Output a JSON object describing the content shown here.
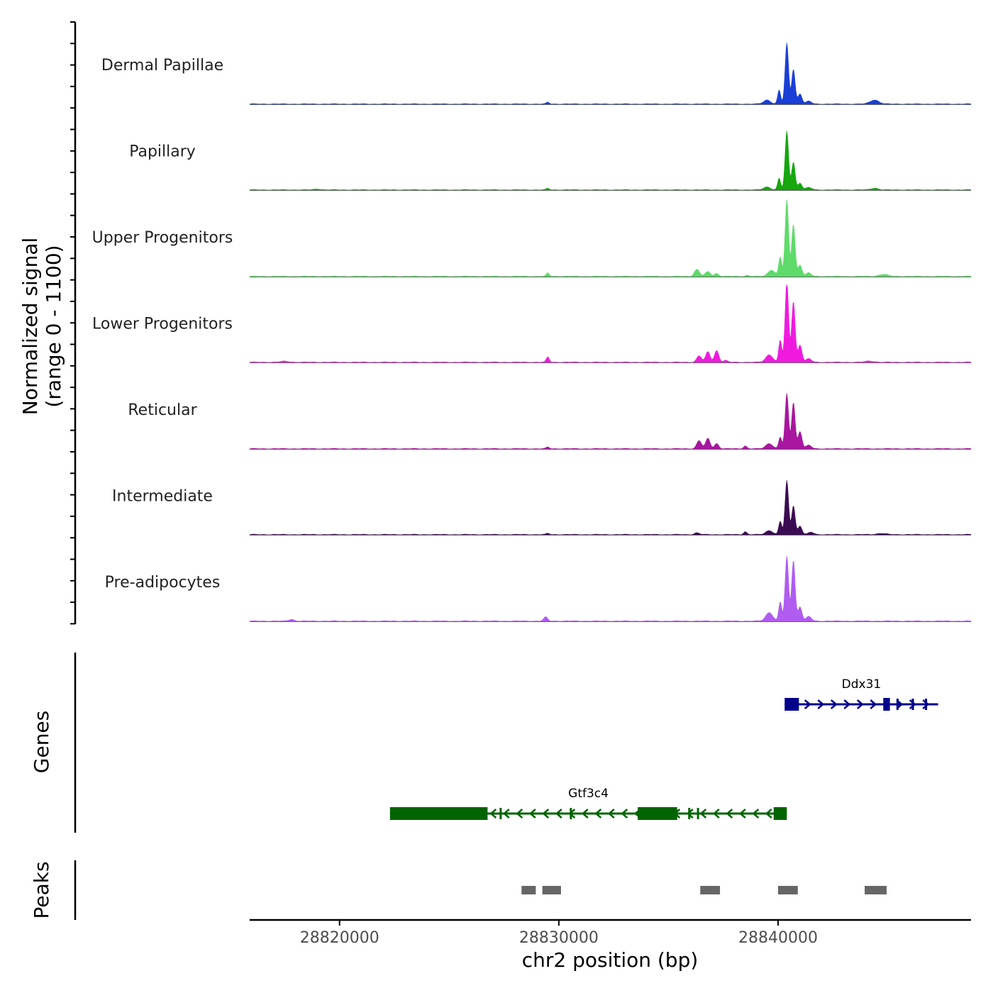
{
  "chart_data": {
    "type": "area",
    "title": "",
    "ylabel": "Normalized signal",
    "ylabel_range": "(range 0 - 1100)",
    "ylim": [
      0,
      1100
    ],
    "xlabel": "chr2 position (bp)",
    "xlim": [
      28815900,
      28848800
    ],
    "x_ticks": [
      28820000,
      28830000,
      28840000
    ],
    "x_tick_labels": [
      "28820000",
      "28830000",
      "28840000"
    ],
    "tracks": [
      {
        "name": "Dermal Papillae",
        "color": "#1A3FD6",
        "peaks": [
          [
            28829500,
            30,
            70
          ],
          [
            28839500,
            70,
            160
          ],
          [
            28840050,
            240,
            70
          ],
          [
            28840400,
            1050,
            80
          ],
          [
            28840700,
            600,
            80
          ],
          [
            28841000,
            180,
            90
          ],
          [
            28841400,
            50,
            120
          ],
          [
            28844400,
            70,
            200
          ]
        ]
      },
      {
        "name": "Papillary",
        "color": "#16A60E",
        "peaks": [
          [
            28819000,
            15,
            150
          ],
          [
            28829500,
            25,
            70
          ],
          [
            28839500,
            50,
            160
          ],
          [
            28840050,
            200,
            70
          ],
          [
            28840400,
            1010,
            80
          ],
          [
            28840700,
            480,
            80
          ],
          [
            28841000,
            120,
            90
          ],
          [
            28841400,
            40,
            140
          ],
          [
            28844400,
            30,
            160
          ]
        ]
      },
      {
        "name": "Upper Progenitors",
        "color": "#5EDB6A",
        "peaks": [
          [
            28829500,
            60,
            70
          ],
          [
            28836300,
            120,
            120
          ],
          [
            28836800,
            80,
            120
          ],
          [
            28837200,
            50,
            100
          ],
          [
            28838600,
            20,
            90
          ],
          [
            28839700,
            110,
            160
          ],
          [
            28840100,
            330,
            70
          ],
          [
            28840400,
            1320,
            80
          ],
          [
            28840700,
            900,
            80
          ],
          [
            28841000,
            200,
            90
          ],
          [
            28841400,
            60,
            120
          ],
          [
            28844800,
            35,
            200
          ]
        ]
      },
      {
        "name": "Lower Progenitors",
        "color": "#F01ADF",
        "peaks": [
          [
            28817500,
            15,
            200
          ],
          [
            28829500,
            90,
            70
          ],
          [
            28836400,
            110,
            110
          ],
          [
            28836800,
            180,
            100
          ],
          [
            28837200,
            200,
            100
          ],
          [
            28837600,
            30,
            100
          ],
          [
            28839600,
            130,
            160
          ],
          [
            28840100,
            380,
            70
          ],
          [
            28840400,
            1400,
            80
          ],
          [
            28840700,
            1050,
            80
          ],
          [
            28841000,
            300,
            90
          ],
          [
            28841400,
            60,
            120
          ],
          [
            28844200,
            20,
            200
          ]
        ]
      },
      {
        "name": "Reticular",
        "color": "#A8169F",
        "peaks": [
          [
            28829500,
            30,
            70
          ],
          [
            28836400,
            140,
            110
          ],
          [
            28836800,
            180,
            100
          ],
          [
            28837200,
            90,
            100
          ],
          [
            28838500,
            50,
            80
          ],
          [
            28839600,
            90,
            160
          ],
          [
            28840100,
            200,
            70
          ],
          [
            28840400,
            950,
            80
          ],
          [
            28840700,
            800,
            80
          ],
          [
            28841000,
            300,
            90
          ],
          [
            28841400,
            60,
            120
          ]
        ]
      },
      {
        "name": "Intermediate",
        "color": "#3B0B52",
        "peaks": [
          [
            28829500,
            20,
            70
          ],
          [
            28836300,
            30,
            110
          ],
          [
            28838500,
            50,
            80
          ],
          [
            28839600,
            70,
            160
          ],
          [
            28840100,
            230,
            70
          ],
          [
            28840400,
            930,
            80
          ],
          [
            28840700,
            500,
            80
          ],
          [
            28841000,
            150,
            90
          ],
          [
            28841500,
            40,
            120
          ],
          [
            28844700,
            20,
            200
          ]
        ]
      },
      {
        "name": "Pre-adipocytes",
        "color": "#B05CF0",
        "peaks": [
          [
            28817800,
            30,
            120
          ],
          [
            28829400,
            70,
            90
          ],
          [
            28839600,
            150,
            160
          ],
          [
            28840100,
            330,
            70
          ],
          [
            28840400,
            1120,
            80
          ],
          [
            28840700,
            1050,
            80
          ],
          [
            28841000,
            250,
            90
          ],
          [
            28841400,
            80,
            120
          ]
        ]
      }
    ],
    "genes": [
      {
        "name": "Ddx31",
        "strand": "+",
        "color": "#00008B",
        "start": 28840300,
        "end": 28847300,
        "exons": [
          [
            28840300,
            28840950
          ],
          [
            28844800,
            28845100
          ],
          [
            28845400,
            28845460
          ],
          [
            28846100,
            28846160
          ],
          [
            28846700,
            28846760
          ]
        ]
      },
      {
        "name": "Gtf3c4",
        "strand": "-",
        "color": "#006400",
        "start": 28822300,
        "end": 28840400,
        "exons": [
          [
            28822300,
            28826750
          ],
          [
            28827300,
            28827360
          ],
          [
            28830500,
            28830560
          ],
          [
            28833600,
            28835400
          ],
          [
            28835900,
            28835960
          ],
          [
            28836300,
            28836360
          ],
          [
            28839800,
            28840400
          ]
        ]
      }
    ],
    "peaks": [
      [
        28828300,
        28828950
      ],
      [
        28829250,
        28830100
      ],
      [
        28836450,
        28837350
      ],
      [
        28840000,
        28840900
      ],
      [
        28843950,
        28844950
      ]
    ],
    "panel_labels": {
      "genes": "Genes",
      "peaks": "Peaks"
    }
  }
}
